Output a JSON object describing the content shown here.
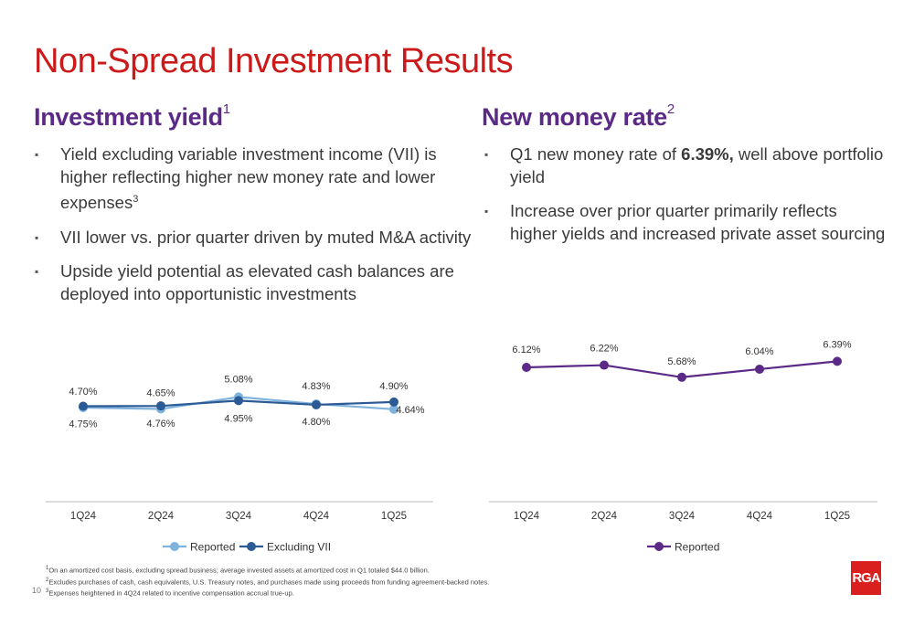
{
  "page": {
    "title": "Non-Spread Investment Results",
    "page_number": "10",
    "logo_text": "RGA"
  },
  "left": {
    "title": "Investment yield",
    "title_sup": "1",
    "bullets": [
      {
        "text": "Yield excluding variable investment income (VII) is higher reflecting higher new money rate and lower expenses",
        "sup": "3"
      },
      {
        "text": "VII lower vs. prior quarter driven by muted M&A activity",
        "sup": ""
      },
      {
        "text": "Upside yield potential as elevated cash balances are deployed into opportunistic investments",
        "sup": ""
      }
    ]
  },
  "right": {
    "title": "New money rate",
    "title_sup": "2",
    "bullet1_pre": "Q1 new money rate of ",
    "bullet1_bold": "6.39%,",
    "bullet1_post": " well above portfolio yield",
    "bullet2": "Increase over prior quarter primarily reflects higher yields and increased private asset sourcing"
  },
  "footnotes": [
    {
      "num": "1",
      "text": "On an amortized cost basis, excluding spread business; average invested assets at amortized cost in Q1 totaled $44.0 billion."
    },
    {
      "num": "2",
      "text": "Excludes purchases of cash, cash equivalents, U.S. Treasury notes, and purchases made using proceeds from funding agreement-backed notes."
    },
    {
      "num": "3",
      "text": "Expenses heightened in 4Q24 related to incentive compensation accrual true-up."
    }
  ],
  "chart_data": [
    {
      "type": "line",
      "categories": [
        "1Q24",
        "2Q24",
        "3Q24",
        "4Q24",
        "1Q25"
      ],
      "series": [
        {
          "name": "Reported",
          "values": [
            4.7,
            4.65,
            5.08,
            4.83,
            4.64
          ],
          "labels": [
            "4.70%",
            "4.65%",
            "5.08%",
            "4.83%",
            "4.64%"
          ],
          "color": "#7fb2dc"
        },
        {
          "name": "Excluding VII",
          "values": [
            4.75,
            4.76,
            4.95,
            4.8,
            4.9
          ],
          "labels": [
            "4.75%",
            "4.76%",
            "4.95%",
            "4.80%",
            "4.90%"
          ],
          "color": "#2c5a94"
        }
      ],
      "legend": "bottom",
      "grid": false
    },
    {
      "type": "line",
      "categories": [
        "1Q24",
        "2Q24",
        "3Q24",
        "4Q24",
        "1Q25"
      ],
      "series": [
        {
          "name": "Reported",
          "values": [
            6.12,
            6.22,
            5.68,
            6.04,
            6.39
          ],
          "labels": [
            "6.12%",
            "6.22%",
            "5.68%",
            "6.04%",
            "6.39%"
          ],
          "color": "#5b2a86"
        }
      ],
      "legend": "bottom",
      "grid": false
    }
  ]
}
